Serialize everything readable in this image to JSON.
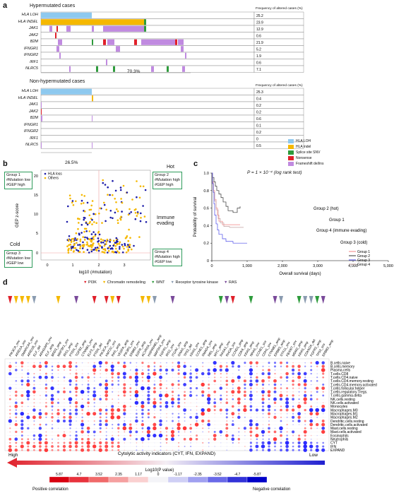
{
  "panel_a": {
    "letter": "a",
    "hyper_title": "Hypermutated cases",
    "nonhyper_title": "Non-hypermutated cases",
    "freq_header": "Frequency of altered cases (%)",
    "genes": [
      "HLA LOH",
      "HLA INDEL",
      "JAK1",
      "JAK2",
      "B2M",
      "IFNGR1",
      "IFNGR2",
      "IRF1",
      "NLRC5"
    ],
    "hyper_genes": [
      "HLA LOH",
      "HLA INDEL",
      "JAK1",
      "JAK2",
      "B2M",
      "IFNGR1",
      "IFNGR2",
      "IRF1",
      "NLRC5"
    ],
    "nonhyper_genes": [
      "HLA LOH",
      "HLA INDEL",
      "JAK1",
      "JAK2",
      "B2M",
      "IFNGR1",
      "IFNGR2",
      "IRF1",
      "NLRC5"
    ],
    "hyper_freq": [
      "25.2",
      "23.9",
      "12.9",
      "0.6",
      "21.9",
      "5.2",
      "1.9",
      "0.6",
      "7.1"
    ],
    "nonhyper_freq": [
      "25.3",
      "0.4",
      "0.2",
      "0.2",
      "0.6",
      "0.1",
      "0.2",
      "0",
      "0.5"
    ],
    "hyper_pct": "70.3%",
    "nonhyper_pct": "26.5%",
    "legend": [
      {
        "label": "HLA LOH",
        "color": "#8ec9ef"
      },
      {
        "label": "HLA indel",
        "color": "#f5b800"
      },
      {
        "label": "Splice site SNV",
        "color": "#2e9b3c"
      },
      {
        "label": "Nonsense",
        "color": "#e0202a"
      },
      {
        "label": "Frameshift del/ins",
        "color": "#c08ae0"
      }
    ]
  },
  "panel_b": {
    "letter": "b",
    "ylabel": "GEP z-score",
    "xlabel": "log10 (#mutation)",
    "legend": [
      "HLA loss",
      "Others"
    ],
    "hot": "Hot",
    "cold": "Cold",
    "immune_evading": "Immune evading",
    "group1": [
      "Group 1",
      "#Mutation low",
      "#GEP high"
    ],
    "group2": [
      "Group 2",
      "#Mutation high",
      "#GEP high"
    ],
    "group3": [
      "Group 3",
      "#Mutation low",
      "#GEP low"
    ],
    "group4": [
      "Group 4",
      "#Mutation high",
      "#GEP low"
    ],
    "xticks": [
      "0",
      "1",
      "2",
      "3"
    ],
    "yticks": [
      "20",
      "15",
      "10",
      "5",
      "0"
    ]
  },
  "panel_c": {
    "letter": "c",
    "pvalue": "P = 1 × 10⁻⁴ (log rank test)",
    "ylabel": "Probability of survival",
    "xlabel": "Overall survival (days)",
    "xticks": [
      "0",
      "1,000",
      "2,000",
      "3,000",
      "4,000",
      "5,000"
    ],
    "yticks": [
      "1.0",
      "0.8",
      "0.6",
      "0.4",
      "0.2",
      "0"
    ],
    "annotations": [
      "Group 2 (hot)",
      "Group 1",
      "Group 4 (immune evading)",
      "Group 3 (cold)"
    ],
    "legend": [
      {
        "label": "Group 1",
        "color": "#f08080"
      },
      {
        "label": "Group 2",
        "color": "#333333"
      },
      {
        "label": "Group 3",
        "color": "#4a4ae8"
      },
      {
        "label": "Group 4",
        "color": "#c0a0a0"
      }
    ]
  },
  "panel_d": {
    "letter": "d",
    "pathway_legend": [
      {
        "label": "PI3K",
        "color": "#e0202a"
      },
      {
        "label": "Chromatin remodeling",
        "color": "#f5b800"
      },
      {
        "label": "WNT",
        "color": "#2e9b3c"
      },
      {
        "label": "Receptor tyrosine kinase",
        "color": "#8a9bb0"
      },
      {
        "label": "RAS",
        "color": "#7a4a9a"
      }
    ],
    "columns": [
      "PIK3CA_snv",
      "ARID1A_snv",
      "SMARCA4_snv",
      "ARID1B_snv",
      "ELF_del",
      "ARHGAP5_snv",
      "ELF_amp",
      "BRD3_amp",
      "MAP3K1_snv",
      "IRS1_amp",
      "PTEN_snv",
      "TGFB2_amp",
      "CTNNB1_snv",
      "ELF3_amp",
      "PTEN_del",
      "PIK3CA_amp",
      "KMT2C_snv",
      "RAS_amp",
      "VEGFA_amp",
      "PIK3R1_snv",
      "ERBB2_snv",
      "EGFR_amp",
      "ACVR2A_snv",
      "HSP90AB1_amp",
      "MAP2K4_snv",
      "FGFR1_amp",
      "IRS2_snv",
      "ITGAV_snv",
      "GNAS_amp",
      "TP53_del",
      "KRAS_snv",
      "CCNE1_amp",
      "SMAD4_snv",
      "RB1_amp",
      "MYC_amp",
      "RASA1_snv",
      "RHOA_snv",
      "CCND1_amp",
      "CDK6_amp",
      "KRAS_amp",
      "NRAS_snv",
      "CCNE1_snv",
      "CDH1_snv",
      "CTNNB1_amp",
      "ERBB3_amp",
      "STK11_snv",
      "FBXW7_snv",
      "MDM2_amp",
      "KRAS_amp",
      "CDKN2A_del",
      "FGFR2_amp",
      "TP53_snv",
      "ERBB2_amp"
    ],
    "rows": [
      "B.cells.naive",
      "B.cells.memory",
      "Plasma.cells",
      "T.cells.CD8",
      "T.cells.CD4.naive",
      "T.cells.CD4.memory.resting",
      "T.cells.CD4.memory.activated",
      "T.cells.follicular.helper",
      "T.cells.regulatory.Tregs.",
      "T.cells.gamma.delta",
      "NK.cells.resting",
      "NK.cells.activated",
      "Monocytes",
      "Macrophages.M0",
      "Macrophages.M1",
      "Macrophages.M2",
      "Dendritic.cells.resting",
      "Dendritic.cells.activated",
      "Mast.cells.resting",
      "Mast.cells.activated",
      "Eosinophils",
      "Neutrophils",
      "CYT",
      "IFN",
      "EXPAND"
    ],
    "cyt_title": "Cytolytic activity indicators (CYT, IFN, EXPAND)",
    "high": "High",
    "low": "Low",
    "scale_title": "Log10(P value)",
    "scale_ticks": [
      "5.87",
      "4.7",
      "3.52",
      "2.35",
      "1.17",
      "0",
      "-1.17",
      "-2.35",
      "-3.52",
      "-4.7",
      "-5.87"
    ],
    "positive": "Positive correlation",
    "negative": "Negative correlation"
  }
}
